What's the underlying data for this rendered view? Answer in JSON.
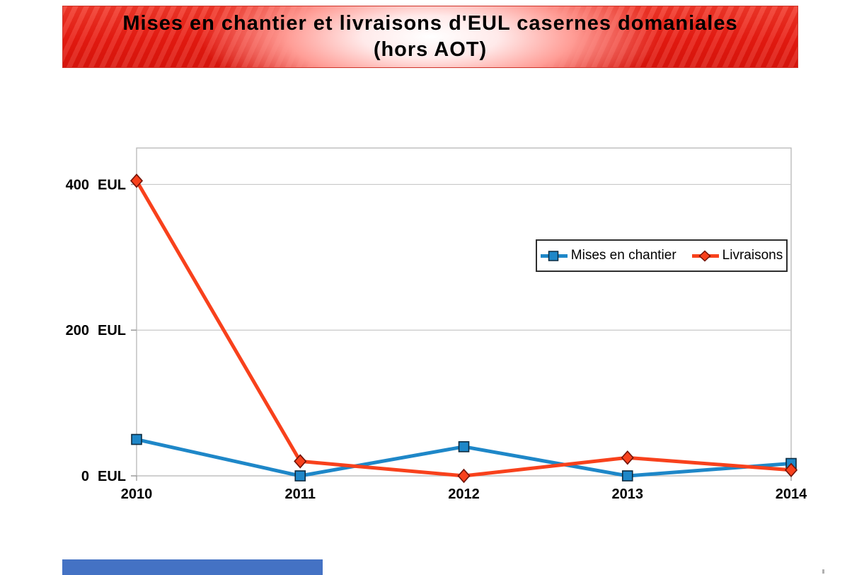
{
  "title": {
    "line1": "Mises en chantier et livraisons d'EUL casernes domaniales",
    "line2": "(hors AOT)"
  },
  "chart_data": {
    "type": "line",
    "categories": [
      "2010",
      "2011",
      "2012",
      "2013",
      "2014"
    ],
    "series": [
      {
        "name": "Mises en chantier",
        "marker": "square",
        "color": "#1E87C8",
        "marker_border": "#0D2B40",
        "values": [
          50,
          0,
          40,
          0,
          17
        ]
      },
      {
        "name": "Livraisons",
        "marker": "diamond",
        "color": "#F8411C",
        "marker_border": "#701207",
        "values": [
          405,
          20,
          0,
          25,
          8
        ]
      }
    ],
    "y_ticks": [
      0,
      200,
      400
    ],
    "y_unit": "EUL",
    "ylim": [
      0,
      450
    ],
    "xlabel": "",
    "ylabel": "",
    "grid": "horizontal",
    "legend_position": "center-right-inside",
    "legend_entries": [
      "Mises en chantier",
      "Livraisons"
    ],
    "plot_border_color": "#B7B7B7",
    "grid_color": "#C9C9C9",
    "tick_color": "#9A9A9A"
  },
  "banner": {
    "color_outer": "#E81C12",
    "color_center": "#FFFFFF"
  },
  "footer_bar": {
    "color": "#4472C4"
  }
}
